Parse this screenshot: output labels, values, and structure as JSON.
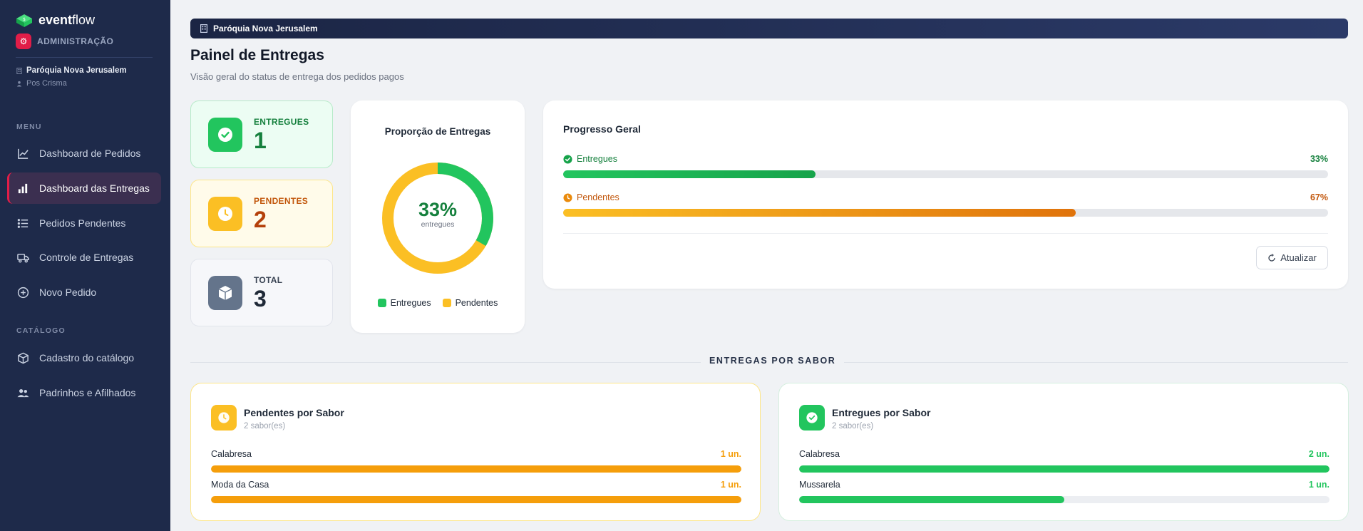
{
  "brand": {
    "name_bold": "event",
    "name_rest": "flow",
    "role": "ADMINISTRAÇÃO"
  },
  "sidebar": {
    "org_name": "Paróquia Nova Jerusalem",
    "org_group": "Pos Crisma",
    "menu_label": "MENU",
    "catalog_label": "CATÁLOGO",
    "menu_items": [
      {
        "label": "Dashboard de Pedidos",
        "icon": "line-chart-icon"
      },
      {
        "label": "Dashboard das Entregas",
        "icon": "bar-chart-icon",
        "active": true
      },
      {
        "label": "Pedidos Pendentes",
        "icon": "list-icon"
      },
      {
        "label": "Controle de Entregas",
        "icon": "truck-icon"
      },
      {
        "label": "Novo Pedido",
        "icon": "plus-circle-icon"
      }
    ],
    "catalog_items": [
      {
        "label": "Cadastro do catálogo",
        "icon": "box-icon"
      },
      {
        "label": "Padrinhos e Afilhados",
        "icon": "users-icon"
      }
    ]
  },
  "header": {
    "org_banner": "Paróquia Nova Jerusalem",
    "title": "Painel de Entregas",
    "subtitle": "Visão geral do status de entrega dos pedidos pagos"
  },
  "stats": {
    "delivered": {
      "label": "ENTREGUES",
      "value": "1"
    },
    "pending": {
      "label": "PENDENTES",
      "value": "2"
    },
    "total": {
      "label": "TOTAL",
      "value": "3"
    }
  },
  "donut": {
    "title": "Proporção de Entregas",
    "center_value": "33%",
    "center_label": "entregues",
    "delivered_fraction": 0.3333,
    "legend": {
      "delivered": "Entregues",
      "pending": "Pendentes"
    },
    "colors": {
      "delivered": "#22c55e",
      "pending": "#fbbf24"
    }
  },
  "progress": {
    "title": "Progresso Geral",
    "delivered": {
      "label": "Entregues",
      "value_text": "33%",
      "value": 33
    },
    "pending": {
      "label": "Pendentes",
      "value_text": "67%",
      "value": 67
    },
    "refresh_label": "Atualizar"
  },
  "section": {
    "label": "ENTREGAS POR SABOR"
  },
  "pending_by_flavor": {
    "title": "Pendentes por Sabor",
    "subtitle": "2 sabor(es)",
    "items": [
      {
        "name": "Calabresa",
        "value_text": "1 un.",
        "fraction": 1.0
      },
      {
        "name": "Moda da Casa",
        "value_text": "1 un.",
        "fraction": 1.0
      }
    ]
  },
  "delivered_by_flavor": {
    "title": "Entregues por Sabor",
    "subtitle": "2 sabor(es)",
    "items": [
      {
        "name": "Calabresa",
        "value_text": "2 un.",
        "fraction": 1.0
      },
      {
        "name": "Mussarela",
        "value_text": "1 un.",
        "fraction": 0.5
      }
    ]
  }
}
